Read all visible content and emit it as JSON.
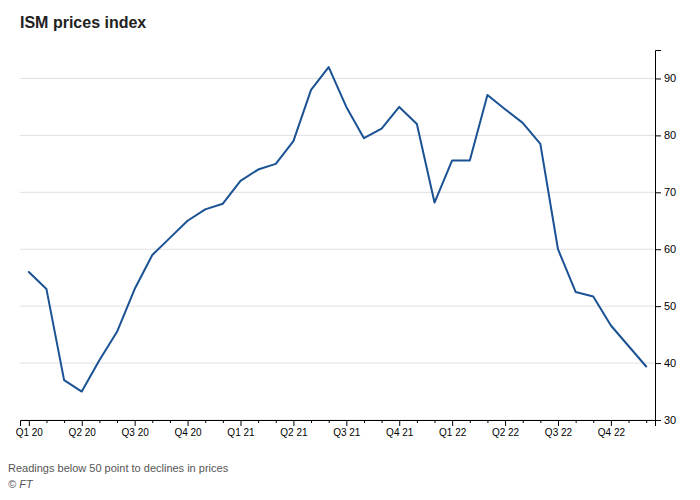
{
  "chart_data": {
    "type": "line",
    "title": "ISM prices index",
    "annotations": [
      "Readings below 50 point to declines in prices",
      "© FT"
    ],
    "categories": [
      "Q1 20",
      null,
      null,
      "Q2 20",
      null,
      null,
      "Q3 20",
      null,
      null,
      "Q4 20",
      null,
      null,
      "Q1 21",
      null,
      null,
      "Q2 21",
      null,
      null,
      "Q3 21",
      null,
      null,
      "Q4 21",
      null,
      null,
      "Q1 22",
      null,
      null,
      "Q2 22",
      null,
      null,
      "Q3 22",
      null,
      null,
      "Q4 22",
      null,
      null
    ],
    "values": [
      56.0,
      53.0,
      37.0,
      35.0,
      40.5,
      45.5,
      53.0,
      59.0,
      62.0,
      65.0,
      67.0,
      68.0,
      72.0,
      74.0,
      75.0,
      79.0,
      88.0,
      92.0,
      85.0,
      79.5,
      81.2,
      85.0,
      82.0,
      68.2,
      75.6,
      75.6,
      87.1,
      84.6,
      82.2,
      78.5,
      60.0,
      52.5,
      51.7,
      46.6,
      43.0,
      39.4
    ],
    "color": "#1a5294",
    "ylim": [
      30,
      95
    ],
    "yticks": [
      30,
      40,
      50,
      60,
      70,
      80,
      90
    ],
    "grid": true
  }
}
